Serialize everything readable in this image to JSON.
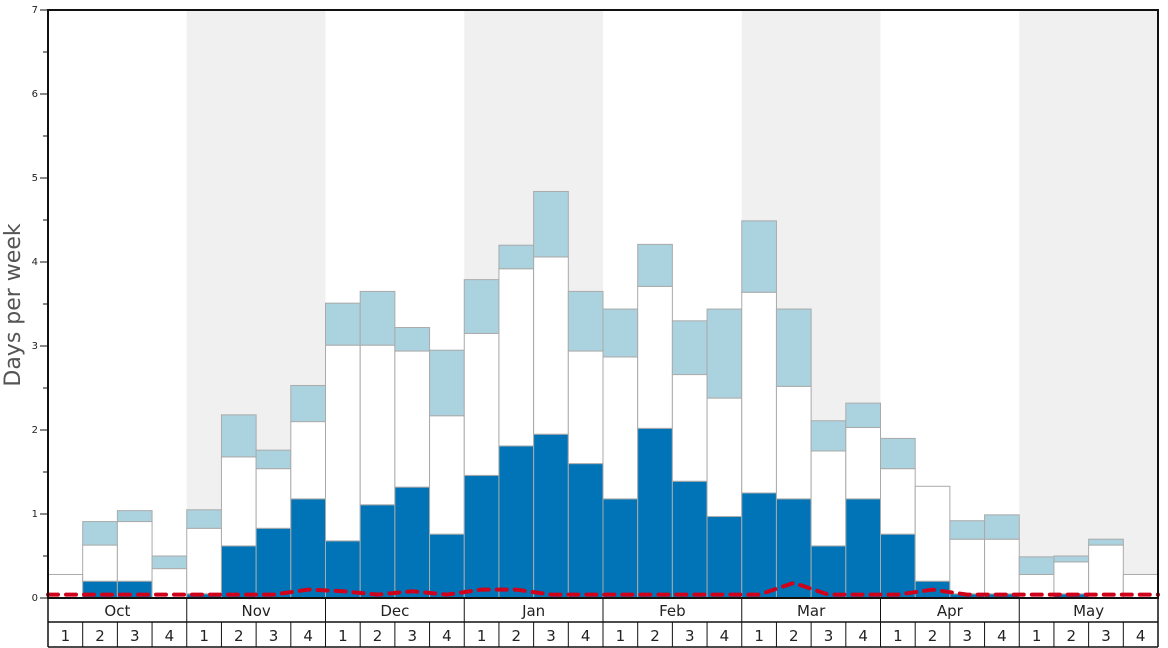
{
  "chart_data": {
    "type": "bar",
    "title": "",
    "xlabel": "",
    "ylabel": "Days per week",
    "ylim": [
      0,
      7
    ],
    "y_ticks": [
      "0",
      "1",
      "2",
      "3",
      "4",
      "5",
      "6",
      "7"
    ],
    "months": [
      "Oct",
      "Nov",
      "Dec",
      "Jan",
      "Feb",
      "Mar",
      "Apr",
      "May"
    ],
    "weeks": [
      "1",
      "2",
      "3",
      "4"
    ],
    "stacked": true,
    "colors": {
      "dark": "#0074b7",
      "white": "#ffffff",
      "light": "#aad3df",
      "line": "#d0021b",
      "shade": "#f0f0f0",
      "bar_stroke": "#aaaaaa"
    },
    "series": [
      {
        "values": [
          0.0,
          0.2,
          0.2,
          0.0,
          0.05,
          0.62,
          0.83,
          1.18,
          0.68,
          1.11,
          1.32,
          0.76,
          1.46,
          1.81,
          1.95,
          1.6,
          1.18,
          2.02,
          1.39,
          0.97,
          1.25,
          1.18,
          0.62,
          1.18,
          0.76,
          0.2,
          0.05,
          0.05,
          0.0,
          0.05,
          0.0,
          0.0
        ]
      },
      {
        "values": [
          0.28,
          0.43,
          0.71,
          0.35,
          0.78,
          1.06,
          0.71,
          0.92,
          2.33,
          1.9,
          1.62,
          1.41,
          1.69,
          2.11,
          2.11,
          1.34,
          1.69,
          1.69,
          1.27,
          1.41,
          2.39,
          1.34,
          1.13,
          0.85,
          0.78,
          1.13,
          0.65,
          0.65,
          0.28,
          0.38,
          0.63,
          0.28
        ]
      },
      {
        "values": [
          0.0,
          0.28,
          0.13,
          0.15,
          0.22,
          0.5,
          0.22,
          0.43,
          0.5,
          0.64,
          0.28,
          0.78,
          0.64,
          0.28,
          0.78,
          0.71,
          0.57,
          0.5,
          0.64,
          1.06,
          0.85,
          0.92,
          0.36,
          0.29,
          0.36,
          0.0,
          0.22,
          0.29,
          0.21,
          0.07,
          0.07,
          0.0
        ]
      },
      {
        "type": "line",
        "values": [
          0.04,
          0.04,
          0.04,
          0.04,
          0.04,
          0.04,
          0.04,
          0.1,
          0.08,
          0.04,
          0.08,
          0.04,
          0.1,
          0.1,
          0.04,
          0.04,
          0.04,
          0.04,
          0.04,
          0.04,
          0.04,
          0.18,
          0.04,
          0.04,
          0.04,
          0.1,
          0.04,
          0.04,
          0.04,
          0.04,
          0.04,
          0.04
        ]
      }
    ]
  }
}
